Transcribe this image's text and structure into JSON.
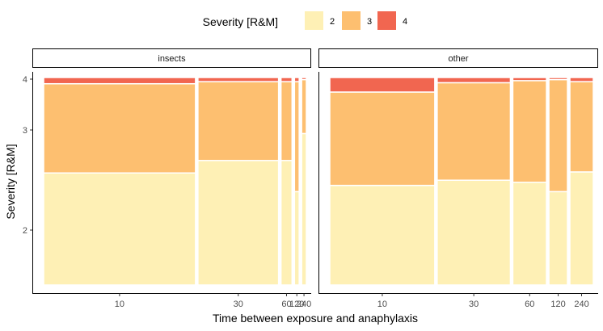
{
  "chart_data": {
    "type": "mosaic",
    "xlabel": "Time between exposure and anaphylaxis",
    "ylabel": "Severity [R&M]",
    "legend": {
      "title": "Severity [R&M]",
      "position": "top",
      "entries": [
        {
          "label": "2",
          "color": "#FEF0B5"
        },
        {
          "label": "3",
          "color": "#FDBF70"
        },
        {
          "label": "4",
          "color": "#F16650"
        }
      ]
    },
    "y_ticks": [
      "2",
      "3",
      "4"
    ],
    "panels": [
      {
        "name": "insects",
        "x_ticks": [
          "10",
          "30",
          "60",
          "120",
          "240"
        ],
        "columns": [
          {
            "time": "10",
            "width": 0.578,
            "proportions": {
              "2": 0.54,
              "3": 0.43,
              "4": 0.03
            }
          },
          {
            "time": "30",
            "width": 0.307,
            "proportions": {
              "2": 0.6,
              "3": 0.38,
              "4": 0.02
            }
          },
          {
            "time": "60",
            "width": 0.042,
            "proportions": {
              "2": 0.6,
              "3": 0.38,
              "4": 0.02
            }
          },
          {
            "time": "120",
            "width": 0.018,
            "proportions": {
              "2": 0.45,
              "3": 0.53,
              "4": 0.02
            }
          },
          {
            "time": "240",
            "width": 0.018,
            "proportions": {
              "2": 0.73,
              "3": 0.26,
              "4": 0.01
            }
          }
        ]
      },
      {
        "name": "other",
        "x_ticks": [
          "10",
          "30",
          "60",
          "120",
          "240"
        ],
        "columns": [
          {
            "time": "10",
            "width": 0.39,
            "proportions": {
              "2": 0.48,
              "3": 0.45,
              "4": 0.07
            }
          },
          {
            "time": "30",
            "width": 0.272,
            "proportions": {
              "2": 0.505,
              "3": 0.47,
              "4": 0.025
            }
          },
          {
            "time": "60",
            "width": 0.125,
            "proportions": {
              "2": 0.495,
              "3": 0.49,
              "4": 0.015
            }
          },
          {
            "time": "120",
            "width": 0.069,
            "proportions": {
              "2": 0.45,
              "3": 0.54,
              "4": 0.01
            }
          },
          {
            "time": "240",
            "width": 0.087,
            "proportions": {
              "2": 0.545,
              "3": 0.435,
              "4": 0.02
            }
          }
        ]
      }
    ]
  }
}
